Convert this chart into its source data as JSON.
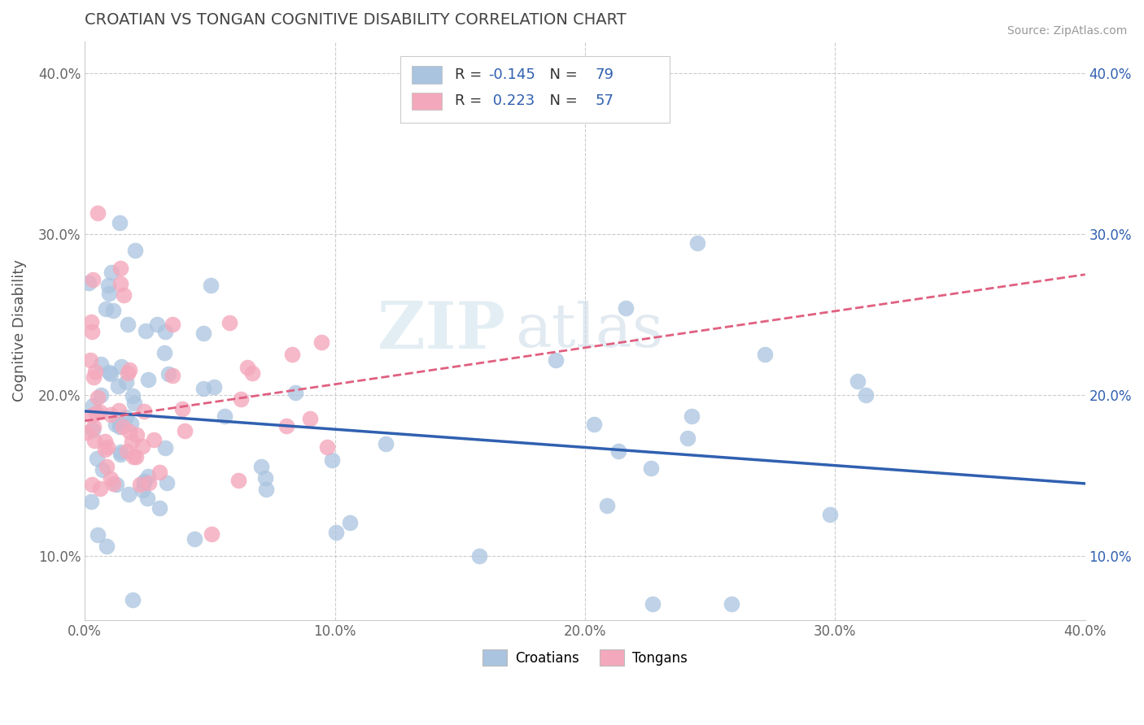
{
  "title": "CROATIAN VS TONGAN COGNITIVE DISABILITY CORRELATION CHART",
  "source": "Source: ZipAtlas.com",
  "ylabel": "Cognitive Disability",
  "xlim": [
    0.0,
    0.4
  ],
  "ylim": [
    0.06,
    0.42
  ],
  "x_ticks": [
    0.0,
    0.1,
    0.2,
    0.3,
    0.4
  ],
  "x_tick_labels": [
    "0.0%",
    "10.0%",
    "20.0%",
    "30.0%",
    "40.0%"
  ],
  "y_ticks": [
    0.1,
    0.2,
    0.3,
    0.4
  ],
  "y_tick_labels": [
    "10.0%",
    "20.0%",
    "30.0%",
    "40.0%"
  ],
  "croatian_color": "#aac4e0",
  "tongan_color": "#f4a8bc",
  "croatian_line_color": "#3060b0",
  "tongan_line_color": "#e06080",
  "R_croatian": -0.145,
  "N_croatian": 79,
  "R_tongan": 0.223,
  "N_tongan": 57,
  "watermark_zip": "ZIP",
  "watermark_atlas": "atlas",
  "legend_r_color": "#3060b0",
  "legend_n_color": "#3060b0"
}
